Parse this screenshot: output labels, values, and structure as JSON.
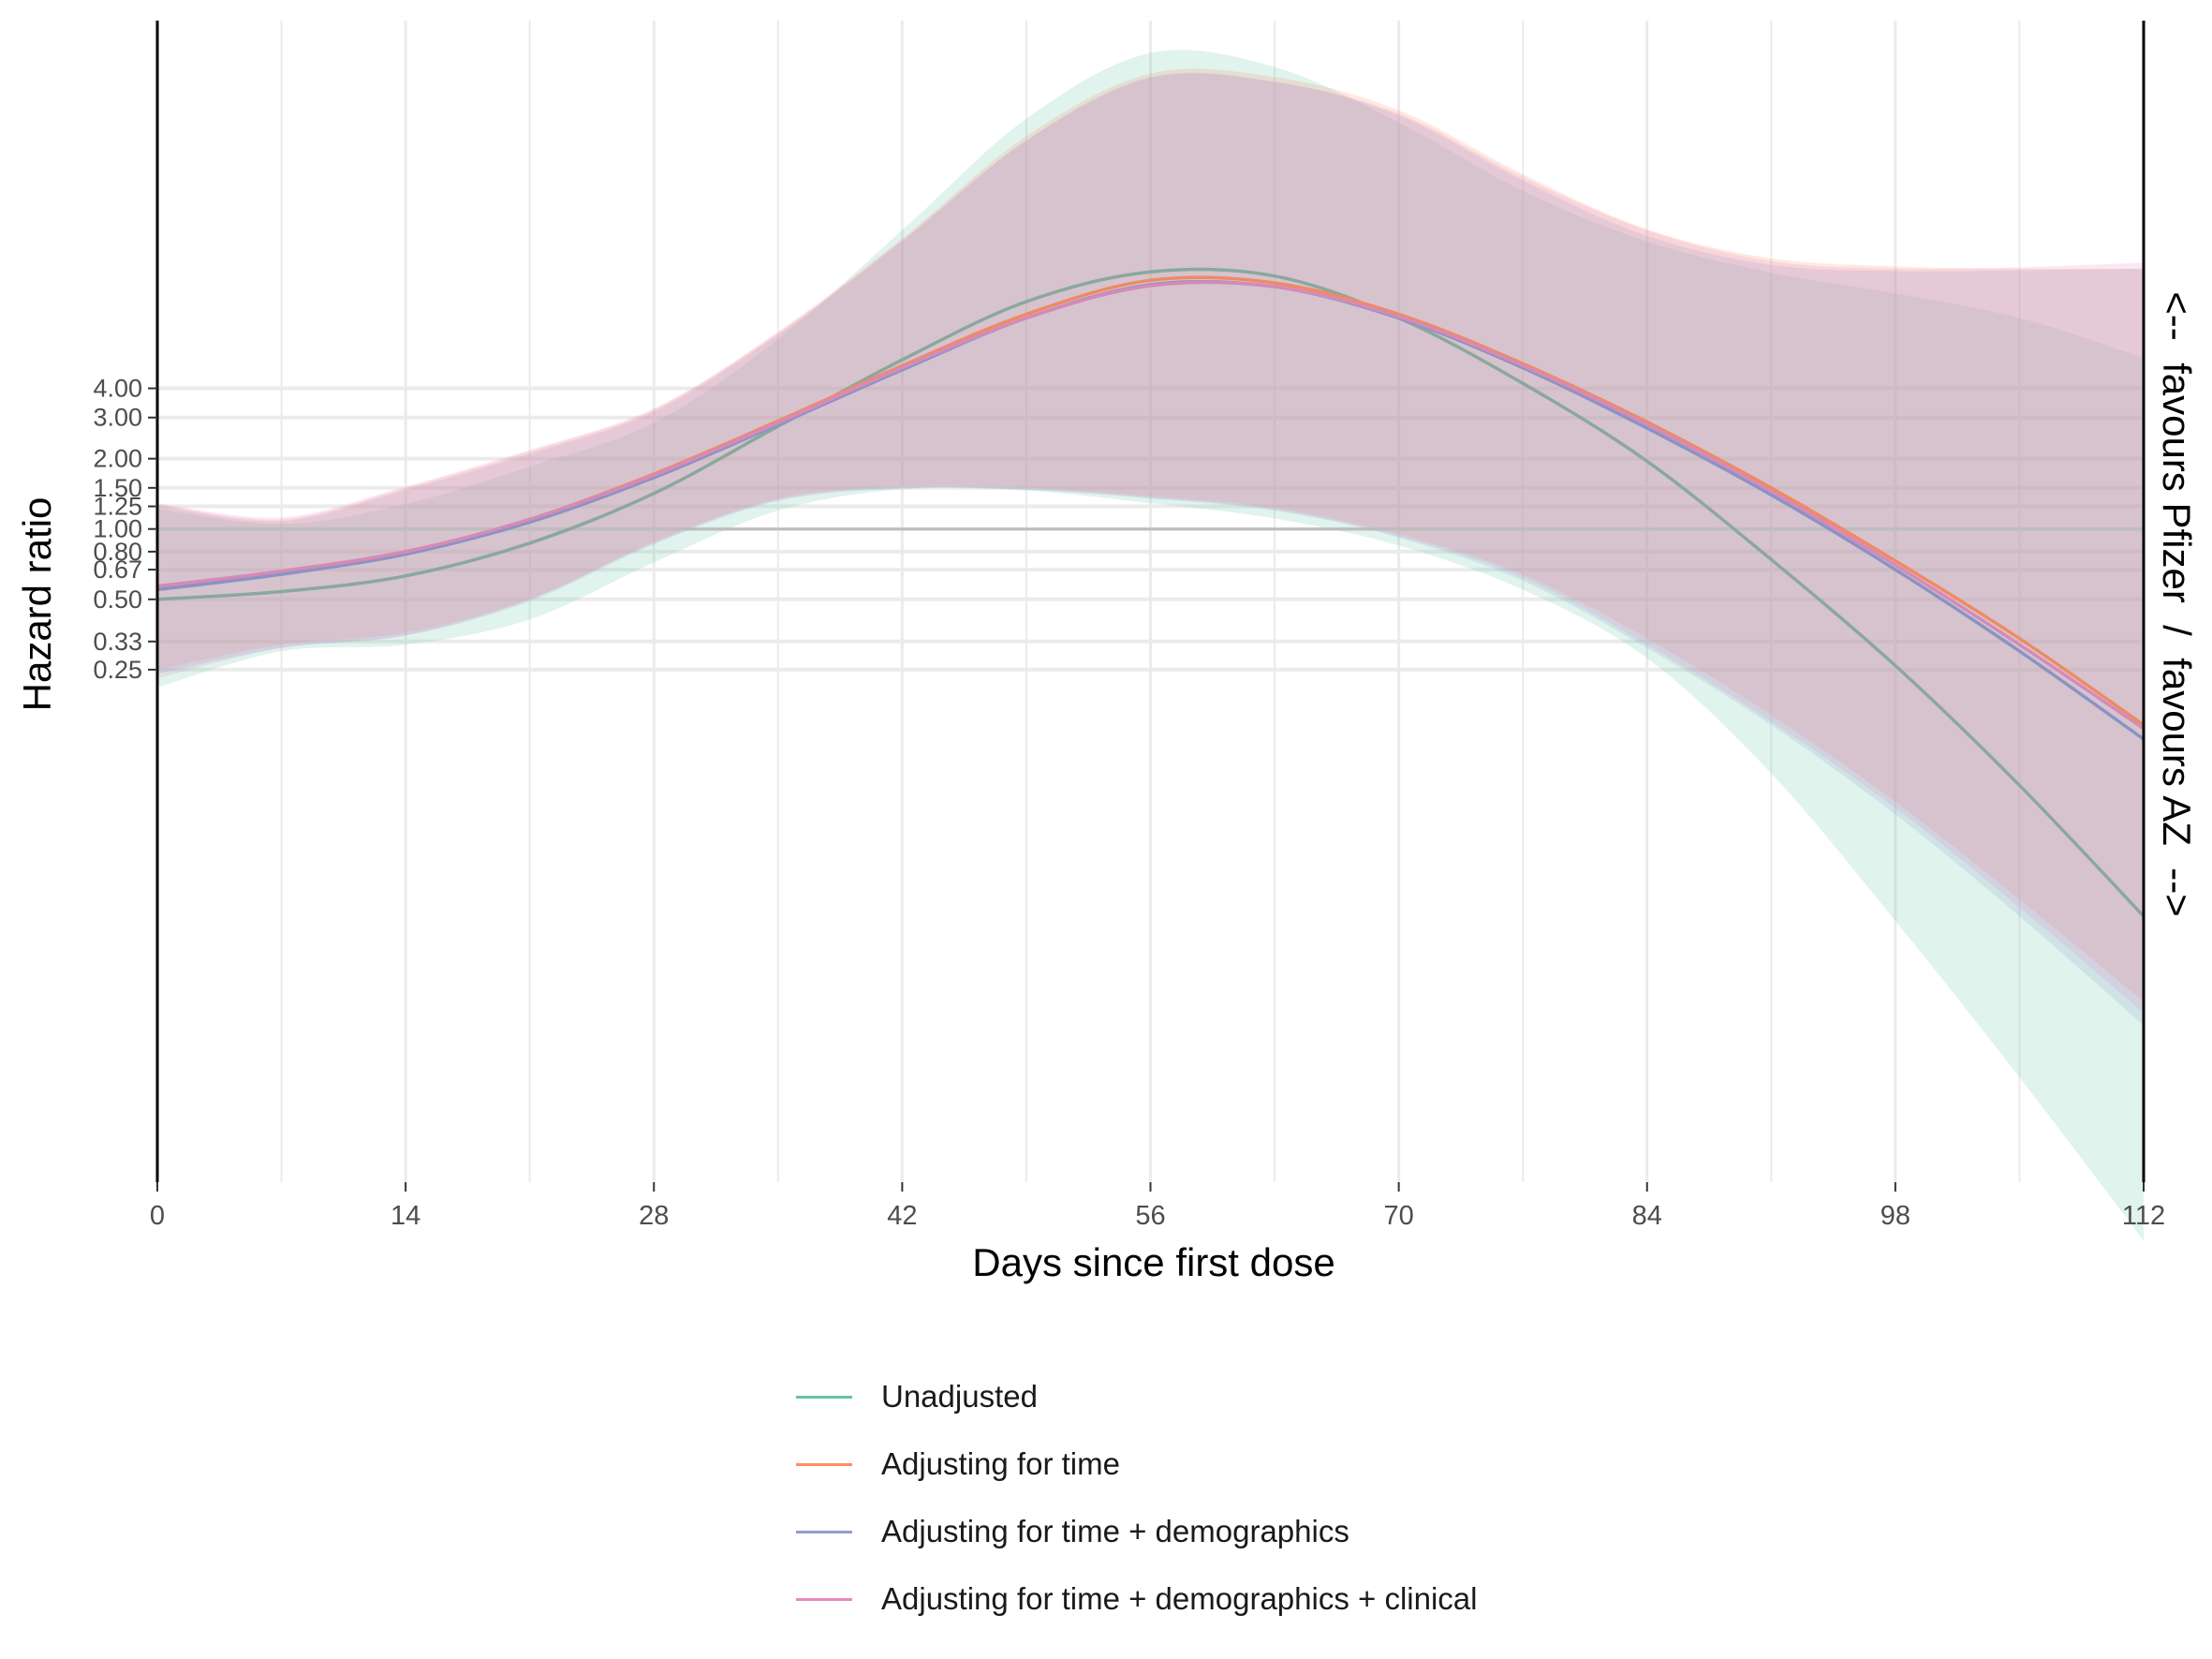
{
  "chart_data": {
    "type": "line",
    "title": "",
    "xlabel": "Days since first dose",
    "ylabel": "Hazard ratio",
    "secondary_ylabel": "<--  favours Pfizer  /  favours AZ  -->",
    "x_ticks": [
      0,
      14,
      28,
      42,
      56,
      70,
      84,
      98,
      112
    ],
    "xlim": [
      0,
      112
    ],
    "y_scale": "log",
    "y_ticks": [
      0.25,
      0.33,
      0.5,
      0.67,
      0.8,
      1.0,
      1.25,
      1.5,
      2.0,
      3.0,
      4.0
    ],
    "y_tick_labels": [
      "0.25",
      "0.33",
      "0.50",
      "0.67",
      "0.80",
      "1.00",
      "1.25",
      "1.50",
      "2.00",
      "3.00",
      "4.00"
    ],
    "ylim": [
      0.0016,
      150
    ],
    "reference_line": 1.0,
    "grid": true,
    "legend_position": "bottom",
    "series": [
      {
        "name": "Unadjusted",
        "color": "#66c2a5",
        "x": [
          0,
          7,
          14,
          21,
          28,
          35,
          42,
          49,
          56,
          63,
          70,
          77,
          84,
          91,
          98,
          105,
          112
        ],
        "y": [
          0.5,
          0.54,
          0.63,
          0.87,
          1.42,
          2.75,
          5.3,
          9.4,
          12.6,
          12.1,
          8.0,
          4.2,
          1.95,
          0.74,
          0.26,
          0.08,
          0.022
        ],
        "lower": [
          0.21,
          0.3,
          0.32,
          0.41,
          0.72,
          1.2,
          1.48,
          1.46,
          1.29,
          1.11,
          0.85,
          0.55,
          0.28,
          0.09,
          0.021,
          0.0045,
          0.0009
        ],
        "upper": [
          1.22,
          1.05,
          1.28,
          1.85,
          2.85,
          6.5,
          19.0,
          57,
          109,
          95,
          55,
          28,
          17,
          12.5,
          10.2,
          8.0,
          5.4
        ]
      },
      {
        "name": "Adjusting for time",
        "color": "#fc8d62",
        "x": [
          0,
          7,
          14,
          21,
          28,
          35,
          42,
          49,
          56,
          63,
          70,
          77,
          84,
          91,
          98,
          105,
          112
        ],
        "y": [
          0.56,
          0.66,
          0.8,
          1.1,
          1.72,
          2.9,
          5.0,
          8.3,
          11.6,
          11.3,
          8.3,
          5.1,
          2.87,
          1.5,
          0.73,
          0.34,
          0.145
        ],
        "lower": [
          0.25,
          0.32,
          0.36,
          0.5,
          0.88,
          1.35,
          1.52,
          1.5,
          1.38,
          1.23,
          0.95,
          0.64,
          0.34,
          0.16,
          0.068,
          0.026,
          0.0095
        ],
        "upper": [
          1.28,
          1.1,
          1.5,
          2.15,
          3.25,
          7.0,
          17.5,
          48,
          89,
          86,
          62,
          33,
          19.2,
          14.4,
          13.3,
          13.0,
          13.0
        ]
      },
      {
        "name": "Adjusting for time + demographics",
        "color": "#8da0cb",
        "x": [
          0,
          7,
          14,
          21,
          28,
          35,
          42,
          49,
          56,
          63,
          70,
          77,
          84,
          91,
          98,
          105,
          112
        ],
        "y": [
          0.55,
          0.64,
          0.78,
          1.07,
          1.66,
          2.8,
          4.8,
          8.0,
          11.1,
          10.9,
          8.0,
          4.9,
          2.7,
          1.4,
          0.67,
          0.3,
          0.126
        ],
        "lower": [
          0.24,
          0.31,
          0.35,
          0.49,
          0.86,
          1.32,
          1.49,
          1.47,
          1.35,
          1.2,
          0.92,
          0.6,
          0.31,
          0.145,
          0.06,
          0.022,
          0.0075
        ],
        "upper": [
          1.26,
          1.08,
          1.47,
          2.1,
          3.18,
          6.8,
          17.0,
          46,
          86,
          82,
          59,
          31,
          18,
          13.5,
          12.7,
          12.8,
          13.0
        ]
      },
      {
        "name": "Adjusting for time + demographics + clinical",
        "color": "#e78ac3",
        "x": [
          0,
          7,
          14,
          21,
          28,
          35,
          42,
          49,
          56,
          63,
          70,
          77,
          84,
          91,
          98,
          105,
          112
        ],
        "y": [
          0.57,
          0.66,
          0.8,
          1.1,
          1.7,
          2.85,
          4.9,
          8.0,
          11.0,
          10.9,
          8.1,
          5.0,
          2.8,
          1.45,
          0.7,
          0.32,
          0.14
        ],
        "lower": [
          0.23,
          0.31,
          0.35,
          0.5,
          0.87,
          1.33,
          1.5,
          1.48,
          1.36,
          1.21,
          0.93,
          0.62,
          0.32,
          0.15,
          0.064,
          0.024,
          0.0085
        ],
        "upper": [
          1.29,
          1.12,
          1.52,
          2.18,
          3.28,
          6.9,
          17.2,
          46,
          85,
          82,
          60,
          32,
          19,
          14,
          13,
          13.2,
          13.8
        ]
      }
    ]
  }
}
